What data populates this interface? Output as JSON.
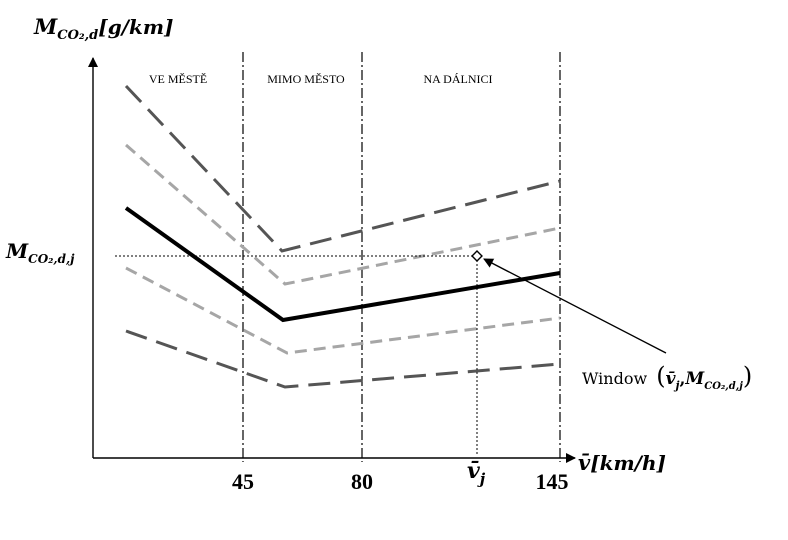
{
  "y_axis": {
    "label": "M",
    "subscript": "CO₂,d",
    "unit": "[g/km]"
  },
  "x_axis": {
    "label": "v̄",
    "unit": "[km/h]"
  },
  "ticks": [
    "45",
    "80",
    "145"
  ],
  "zones": [
    "VE MĚSTĚ",
    "MIMO MĚSTO",
    "NA DÁLNICI"
  ],
  "marker_y": {
    "label": "M",
    "subscript": "CO₂,d,j"
  },
  "marker_x": {
    "label": "v̄",
    "subscript": "j"
  },
  "window_label": {
    "prefix": "Window",
    "open": "(",
    "v": "v̄",
    "vsub": "j",
    "comma": ",",
    "m": "M",
    "msub": "CO₂,d,j",
    "close": ")"
  },
  "colors": {
    "line": "#000000",
    "dash_dark": "#555555",
    "dash_light": "#a6a6a6"
  }
}
